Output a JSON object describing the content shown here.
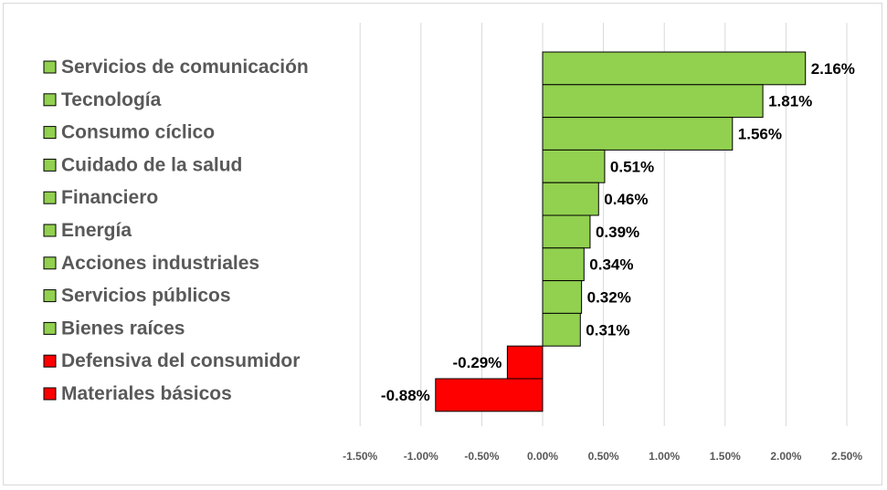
{
  "chart_data": {
    "type": "bar",
    "orientation": "horizontal",
    "title": "",
    "xlabel": "",
    "ylabel": "",
    "categories": [
      "Servicios de comunicación",
      "Tecnología",
      "Consumo cíclico",
      "Cuidado de la salud",
      "Financiero",
      "Energía",
      "Acciones industriales",
      "Servicios públicos",
      "Bienes raíces",
      "Defensiva del consumidor",
      "Materiales básicos"
    ],
    "values": [
      2.16,
      1.81,
      1.56,
      0.51,
      0.46,
      0.39,
      0.34,
      0.32,
      0.31,
      -0.29,
      -0.88
    ],
    "data_labels": [
      "2.16%",
      "1.81%",
      "1.56%",
      "0.51%",
      "0.46%",
      "0.39%",
      "0.34%",
      "0.32%",
      "0.31%",
      "-0.29%",
      "-0.88%"
    ],
    "xlim": [
      -1.5,
      2.5
    ],
    "x_ticks": [
      -1.5,
      -1.0,
      -0.5,
      0.0,
      0.5,
      1.0,
      1.5,
      2.0,
      2.5
    ],
    "x_tick_labels": [
      "-1.50%",
      "-1.00%",
      "-0.50%",
      "0.00%",
      "0.50%",
      "1.00%",
      "1.50%",
      "2.00%",
      "2.50%"
    ],
    "grid": "vertical",
    "legend_position": "left",
    "colors": {
      "positive": "#92d050",
      "negative": "#ff0000",
      "bar_border": "#000000",
      "gridline": "#d9d9d9"
    }
  }
}
